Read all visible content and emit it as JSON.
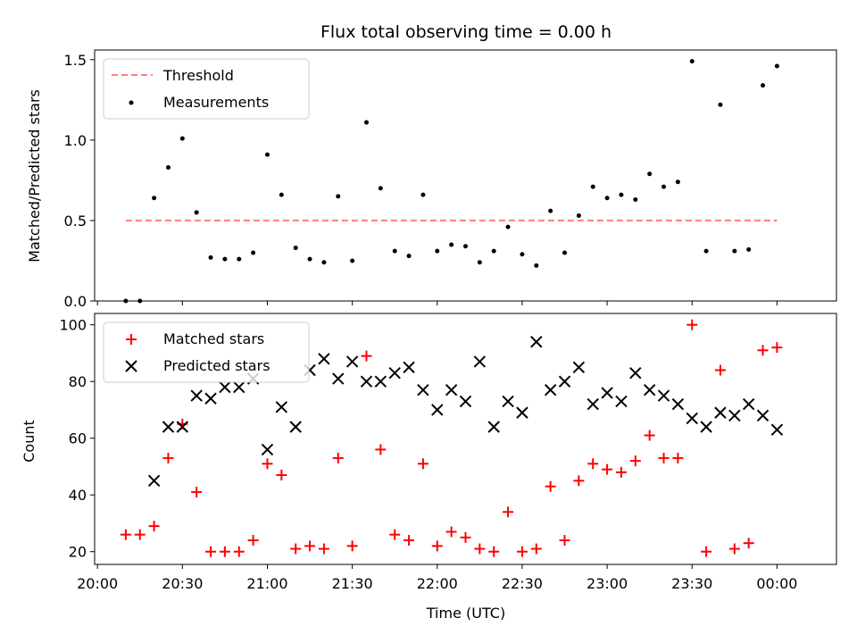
{
  "chart_data": [
    {
      "type": "scatter",
      "title": "Flux total observing time = 0.00 h",
      "xlabel": "",
      "ylabel": "Matched/Predicted stars",
      "xlim": [
        "19:59",
        "00:21"
      ],
      "ylim": [
        0,
        1.56
      ],
      "yticks": [
        "0.0",
        "0.5",
        "1.0",
        "1.5"
      ],
      "ytick_values": [
        0,
        0.5,
        1.0,
        1.5
      ],
      "xticks_shown_as_labels": false,
      "grid": false,
      "legend_position": "upper-left",
      "threshold": {
        "name": "Threshold",
        "y": 0.5,
        "x_from": "20:10",
        "x_to": "00:00",
        "color": "#ff7f7f",
        "style": "dashed"
      },
      "series": [
        {
          "name": "Measurements",
          "marker": "dot",
          "color": "#000000",
          "x": [
            "20:10",
            "20:15",
            "20:20",
            "20:25",
            "20:30",
            "20:35",
            "20:40",
            "20:45",
            "20:50",
            "20:55",
            "21:00",
            "21:05",
            "21:10",
            "21:15",
            "21:20",
            "21:25",
            "21:30",
            "21:35",
            "21:40",
            "21:45",
            "21:50",
            "21:55",
            "22:00",
            "22:05",
            "22:10",
            "22:15",
            "22:20",
            "22:25",
            "22:30",
            "22:35",
            "22:40",
            "22:45",
            "22:50",
            "22:55",
            "23:00",
            "23:05",
            "23:10",
            "23:15",
            "23:20",
            "23:25",
            "23:30",
            "23:35",
            "23:40",
            "23:45",
            "23:50",
            "23:55",
            "00:00"
          ],
          "y": [
            0.0,
            0.0,
            0.64,
            0.83,
            1.01,
            0.55,
            0.27,
            0.26,
            0.26,
            0.3,
            0.91,
            0.66,
            0.33,
            0.26,
            0.24,
            0.65,
            0.25,
            1.11,
            0.7,
            0.31,
            0.28,
            0.66,
            0.31,
            0.35,
            0.34,
            0.24,
            0.31,
            0.46,
            0.29,
            0.22,
            0.56,
            0.3,
            0.53,
            0.71,
            0.64,
            0.66,
            0.63,
            0.79,
            0.71,
            0.74,
            1.49,
            0.31,
            1.22,
            0.31,
            0.32,
            1.34,
            1.46
          ]
        }
      ]
    },
    {
      "type": "scatter",
      "title": "",
      "xlabel": "Time (UTC)",
      "ylabel": "Count",
      "xlim": [
        "19:59",
        "00:21"
      ],
      "ylim": [
        15.5,
        104
      ],
      "yticks": [
        "20",
        "40",
        "60",
        "80",
        "100"
      ],
      "ytick_values": [
        20,
        40,
        60,
        80,
        100
      ],
      "xticks": [
        "20:00",
        "20:30",
        "21:00",
        "21:30",
        "22:00",
        "22:30",
        "23:00",
        "23:30",
        "00:00"
      ],
      "grid": false,
      "legend_position": "upper-left",
      "series": [
        {
          "name": "Matched stars",
          "marker": "plus",
          "color": "#ff0000",
          "x": [
            "20:10",
            "20:15",
            "20:20",
            "20:25",
            "20:30",
            "20:35",
            "20:40",
            "20:45",
            "20:50",
            "20:55",
            "21:00",
            "21:05",
            "21:10",
            "21:15",
            "21:20",
            "21:25",
            "21:30",
            "21:35",
            "21:40",
            "21:45",
            "21:50",
            "21:55",
            "22:00",
            "22:05",
            "22:10",
            "22:15",
            "22:20",
            "22:25",
            "22:30",
            "22:35",
            "22:40",
            "22:45",
            "22:50",
            "22:55",
            "23:00",
            "23:05",
            "23:10",
            "23:15",
            "23:20",
            "23:25",
            "23:30",
            "23:35",
            "23:40",
            "23:45",
            "23:50",
            "23:55",
            "00:00"
          ],
          "y": [
            26,
            26,
            29,
            53,
            65,
            41,
            20,
            20,
            20,
            24,
            51,
            47,
            21,
            22,
            21,
            53,
            22,
            89,
            56,
            26,
            24,
            51,
            22,
            27,
            25,
            21,
            20,
            34,
            20,
            21,
            43,
            24,
            45,
            51,
            49,
            48,
            52,
            61,
            53,
            53,
            100,
            20,
            84,
            21,
            23,
            91,
            92
          ]
        },
        {
          "name": "Predicted stars",
          "marker": "x",
          "color": "#000000",
          "x": [
            "20:20",
            "20:25",
            "20:30",
            "20:35",
            "20:40",
            "20:45",
            "20:50",
            "20:55",
            "21:00",
            "21:05",
            "21:10",
            "21:15",
            "21:20",
            "21:25",
            "21:30",
            "21:35",
            "21:40",
            "21:45",
            "21:50",
            "21:55",
            "22:00",
            "22:05",
            "22:10",
            "22:15",
            "22:20",
            "22:25",
            "22:30",
            "22:35",
            "22:40",
            "22:45",
            "22:50",
            "22:55",
            "23:00",
            "23:05",
            "23:10",
            "23:15",
            "23:20",
            "23:25",
            "23:30",
            "23:35",
            "23:40",
            "23:45",
            "23:50",
            "23:55",
            "00:00"
          ],
          "y": [
            45,
            64,
            64,
            75,
            74,
            78,
            78,
            81,
            56,
            71,
            64,
            84,
            88,
            81,
            87,
            80,
            80,
            83,
            85,
            77,
            70,
            77,
            73,
            87,
            64,
            73,
            69,
            94,
            77,
            80,
            85,
            72,
            76,
            73,
            83,
            77,
            75,
            72,
            67,
            64,
            69,
            68,
            72,
            68,
            63
          ]
        }
      ]
    }
  ]
}
